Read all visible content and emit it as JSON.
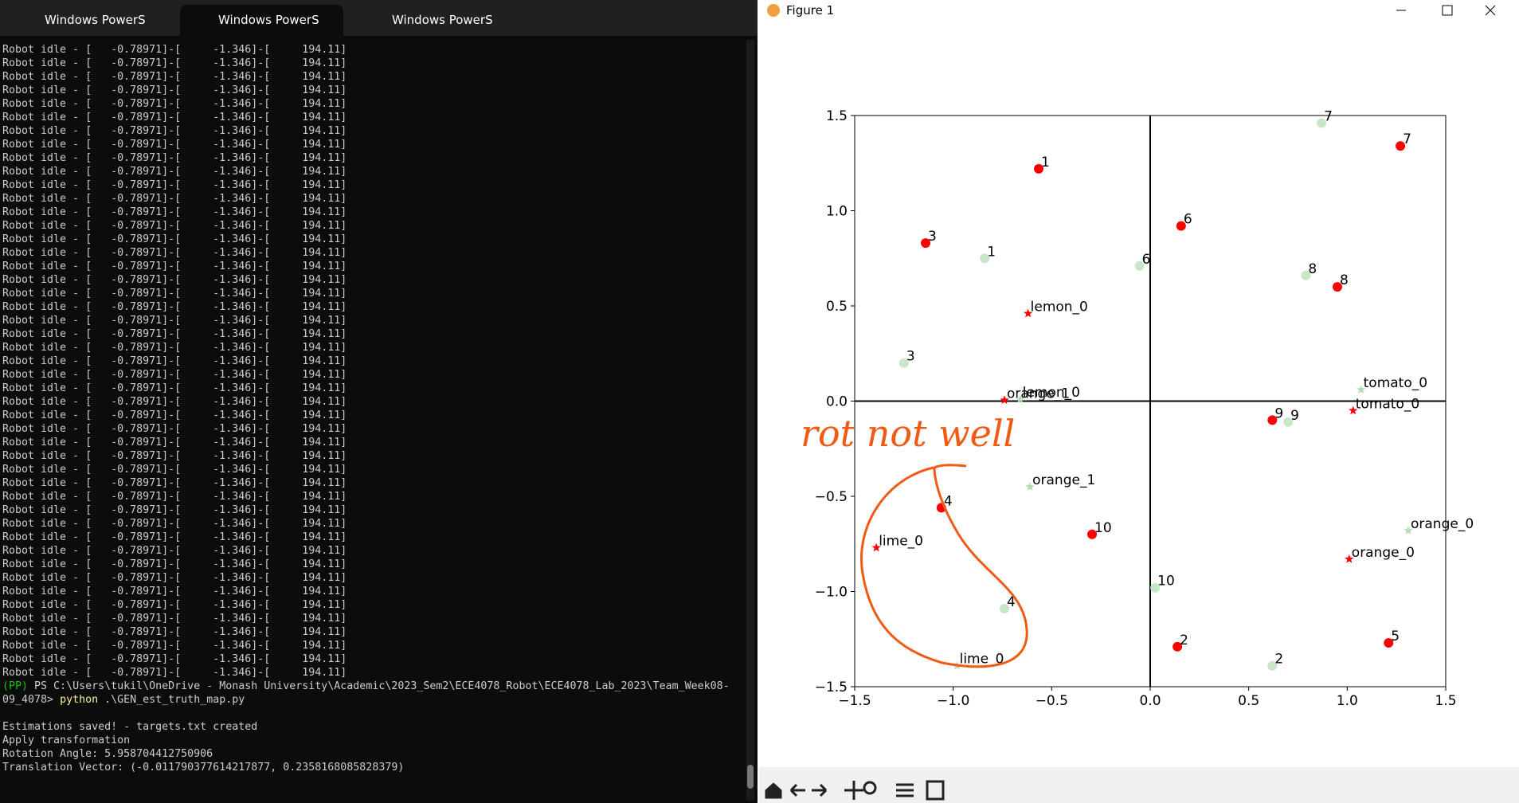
{
  "terminal": {
    "tabs": [
      "Windows PowerS",
      "Windows PowerS",
      "Windows PowerS"
    ],
    "log": [
      "Robot idle - [   -0.78971]-[     -1.346]-[     194.11]",
      "Robot idle - [   -0.78971]-[     -1.346]-[     194.11]",
      "Robot idle - [   -0.78971]-[     -1.346]-[     194.11]",
      "Robot idle - [   -0.78971]-[     -1.346]-[     194.11]",
      "Robot idle - [   -0.78971]-[     -1.346]-[     194.11]",
      "Robot idle - [   -0.78971]-[     -1.346]-[     194.11]",
      "Robot idle - [   -0.78971]-[     -1.346]-[     194.11]",
      "Robot idle - [   -0.78971]-[     -1.346]-[     194.11]",
      "Robot idle - [   -0.78971]-[     -1.346]-[     194.11]",
      "Robot idle - [   -0.78971]-[     -1.346]-[     194.11]",
      "Robot idle - [   -0.78971]-[     -1.346]-[     194.11]",
      "Robot idle - [   -0.78971]-[     -1.346]-[     194.11]",
      "Robot idle - [   -0.78971]-[     -1.346]-[     194.11]",
      "Robot idle - [   -0.78971]-[     -1.346]-[     194.11]",
      "Robot idle - [   -0.78971]-[     -1.346]-[     194.11]",
      "Robot idle - [   -0.78971]-[     -1.346]-[     194.11]",
      "Robot idle - [   -0.78971]-[     -1.346]-[     194.11]",
      "Robot idle - [   -0.78971]-[     -1.346]-[     194.11]",
      "Robot idle - [   -0.78971]-[     -1.346]-[     194.11]",
      "Robot idle - [   -0.78971]-[     -1.346]-[     194.11]",
      "Robot idle - [   -0.78971]-[     -1.346]-[     194.11]",
      "Robot idle - [   -0.78971]-[     -1.346]-[     194.11]",
      "Robot idle - [   -0.78971]-[     -1.346]-[     194.11]",
      "Robot idle - [   -0.78971]-[     -1.346]-[     194.11]",
      "Robot idle - [   -0.78971]-[     -1.346]-[     194.11]",
      "Robot idle - [   -0.78971]-[     -1.346]-[     194.11]",
      "Robot idle - [   -0.78971]-[     -1.346]-[     194.11]",
      "Robot idle - [   -0.78971]-[     -1.346]-[     194.11]",
      "Robot idle - [   -0.78971]-[     -1.346]-[     194.11]",
      "Robot idle - [   -0.78971]-[     -1.346]-[     194.11]",
      "Robot idle - [   -0.78971]-[     -1.346]-[     194.11]",
      "Robot idle - [   -0.78971]-[     -1.346]-[     194.11]",
      "Robot idle - [   -0.78971]-[     -1.346]-[     194.11]",
      "Robot idle - [   -0.78971]-[     -1.346]-[     194.11]",
      "Robot idle - [   -0.78971]-[     -1.346]-[     194.11]",
      "Robot idle - [   -0.78971]-[     -1.346]-[     194.11]",
      "Robot idle - [   -0.78971]-[     -1.346]-[     194.11]",
      "Robot idle - [   -0.78971]-[     -1.346]-[     194.11]",
      "Robot idle - [   -0.78971]-[     -1.346]-[     194.11]",
      "Robot idle - [   -0.78971]-[     -1.346]-[     194.11]",
      "Robot idle - [   -0.78971]-[     -1.346]-[     194.11]",
      "Robot idle - [   -0.78971]-[     -1.346]-[     194.11]",
      "Robot idle - [   -0.78971]-[     -1.346]-[     194.11]",
      "Robot idle - [   -0.78971]-[     -1.346]-[     194.11]",
      "Robot idle - [   -0.78971]-[     -1.346]-[     194.11]",
      "Robot idle - [   -0.78971]-[     -1.346]-[     194.11]",
      "Robot idle - [   -0.78971]-[     -1.346]-[     194.11]"
    ],
    "prompt": {
      "env": "(PP)",
      "path": " PS C:\\Users\\tukil\\OneDrive - Monash University\\Academic\\2023_Sem2\\ECE4078_Robot\\ECE4078_Lab_2023\\Team_Week08-",
      "path2": "09_4078> ",
      "command": "python",
      "args": " .\\GEN_est_truth_map.py"
    },
    "output": [
      "Estimations saved! - targets.txt created",
      "Apply transformation",
      "Rotation Angle: 5.958704412750906",
      "Translation Vector: (-0.011790377614217877, 0.2358168085828379)"
    ]
  },
  "figure": {
    "window_title": "Figure 1",
    "annotation": "rot not well",
    "chart_data": {
      "type": "scatter",
      "xlim": [
        -1.5,
        1.5
      ],
      "ylim": [
        -1.5,
        1.5
      ],
      "xticks": [
        {
          "value": -1.5,
          "label": "−1.5"
        },
        {
          "value": -1.0,
          "label": "−1.0"
        },
        {
          "value": -0.5,
          "label": "−0.5"
        },
        {
          "value": 0.0,
          "label": "0.0"
        },
        {
          "value": 0.5,
          "label": "0.5"
        },
        {
          "value": 1.0,
          "label": "1.0"
        },
        {
          "value": 1.5,
          "label": "1.5"
        }
      ],
      "yticks": [
        {
          "value": -1.5,
          "label": "−1.5"
        },
        {
          "value": -1.0,
          "label": "−1.0"
        },
        {
          "value": -0.5,
          "label": "−0.5"
        },
        {
          "value": 0.0,
          "label": "0.0"
        },
        {
          "value": 0.5,
          "label": "0.5"
        },
        {
          "value": 1.0,
          "label": "1.0"
        },
        {
          "value": 1.5,
          "label": "1.5"
        }
      ],
      "series": [
        {
          "color": "#ff0000",
          "marker": "circle",
          "labels": [
            "1",
            "3",
            "6",
            "7",
            "8",
            "9",
            "10",
            "4",
            "2",
            "5"
          ],
          "x": [
            -0.566,
            -1.14,
            0.157,
            1.27,
            0.95,
            0.62,
            -0.295,
            -1.06,
            0.138,
            1.21
          ],
          "y": [
            1.22,
            0.83,
            0.92,
            1.34,
            0.6,
            -0.1,
            -0.7,
            -0.56,
            -1.29,
            -1.27
          ]
        },
        {
          "color": "#c8e6c8",
          "marker": "circle",
          "labels": [
            "7",
            "1",
            "6",
            "8",
            "3",
            "9",
            "10",
            "4",
            "2"
          ],
          "x": [
            0.87,
            -0.84,
            -0.054,
            0.79,
            -1.25,
            0.7,
            0.025,
            -0.74,
            0.62
          ],
          "y": [
            1.46,
            0.75,
            0.71,
            0.66,
            0.2,
            -0.11,
            -0.98,
            -1.09,
            -1.39
          ]
        },
        {
          "color": "#ff0000",
          "marker": "star",
          "labels": [
            "lemon_0",
            "orange_1",
            "tomato_0",
            "lime_0",
            "orange_0"
          ],
          "x": [
            -0.62,
            -0.74,
            1.03,
            -1.39,
            1.01
          ],
          "y": [
            0.46,
            0.005,
            -0.05,
            -0.77,
            -0.83
          ]
        },
        {
          "color": "#b4dcb4",
          "marker": "star",
          "labels": [
            "lemon_0",
            "tomato_0",
            "orange_1",
            "orange_0",
            "lime_0"
          ],
          "x": [
            -0.66,
            1.07,
            -0.61,
            1.31,
            -0.98
          ],
          "y": [
            0.01,
            0.06,
            -0.45,
            -0.68,
            -1.39
          ]
        }
      ]
    }
  }
}
